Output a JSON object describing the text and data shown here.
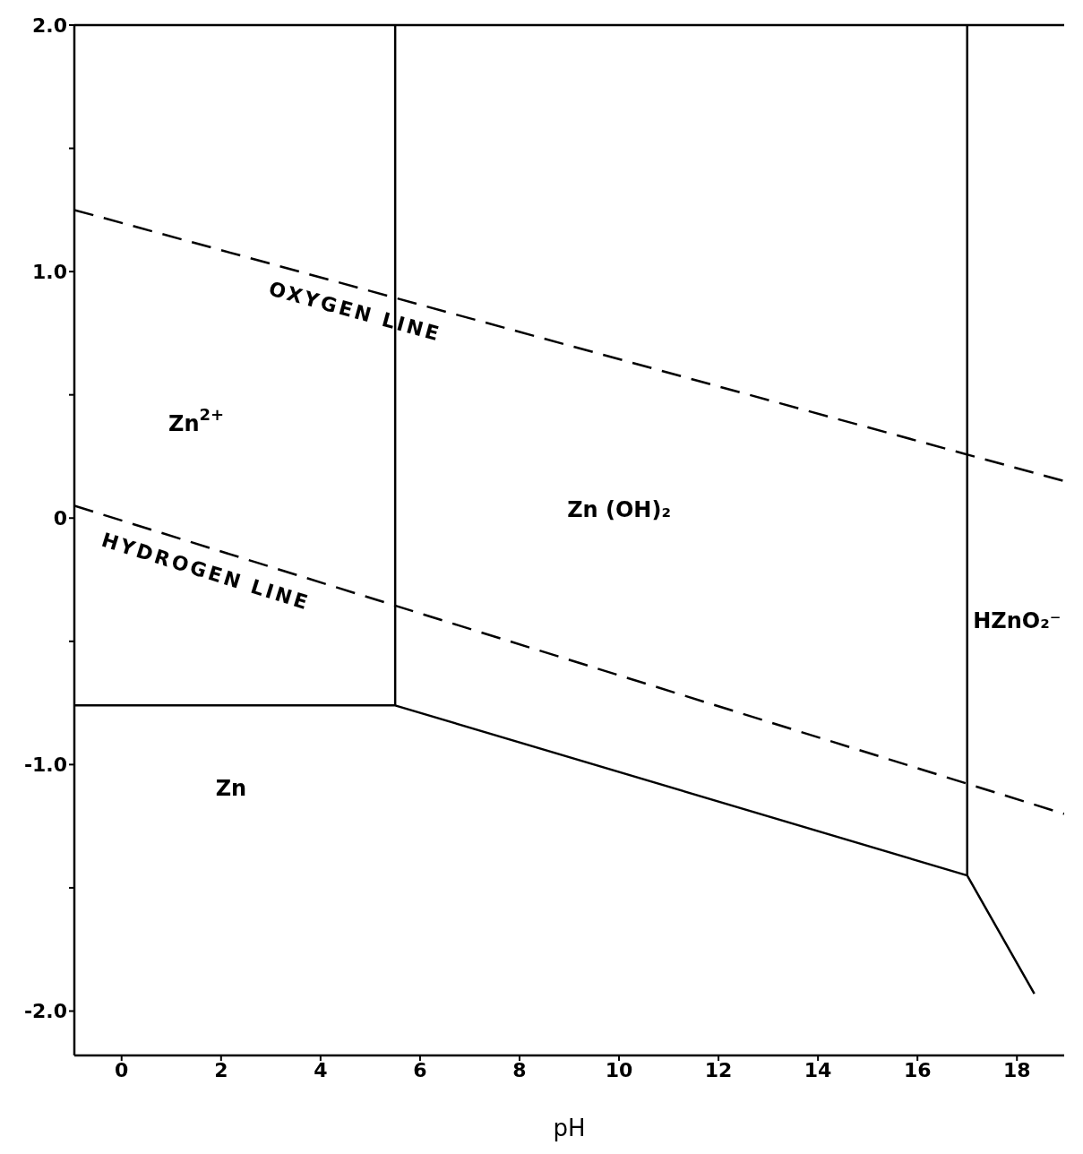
{
  "chart_data": {
    "type": "line",
    "xlabel": "pH",
    "xlim": [
      -0.95,
      18.95
    ],
    "xticks": [
      0,
      2,
      4,
      6,
      8,
      10,
      12,
      14,
      16,
      18
    ],
    "ylim": [
      -2.18,
      2.0
    ],
    "yticks": [
      {
        "value": 2.0,
        "label": "2.0"
      },
      {
        "value": 1.5,
        "label": null
      },
      {
        "value": 1.0,
        "label": "1.0"
      },
      {
        "value": 0.5,
        "label": null
      },
      0,
      {
        "value": -0.5,
        "label": null
      },
      {
        "value": -1.0,
        "label": "-1.0"
      },
      {
        "value": -1.5,
        "label": null
      },
      {
        "value": -2.0,
        "label": "-2.0"
      }
    ],
    "marker": "none",
    "series": [
      {
        "name": "OXYGEN LINE",
        "color": "#000000",
        "line_style": "dashed",
        "x": [
          -0.95,
          18.95
        ],
        "values": [
          1.25,
          0.15
        ]
      },
      {
        "name": "HYDROGEN LINE",
        "color": "#000000",
        "line_style": "dashed",
        "x": [
          -0.95,
          18.95
        ],
        "values": [
          0.05,
          -1.2
        ]
      },
      {
        "color": "#000000",
        "line_style": "solid",
        "x": [
          -0.95,
          5.5,
          17.0,
          18.35
        ],
        "values": [
          -0.76,
          -0.76,
          -1.45,
          -1.93
        ]
      },
      {
        "color": "#000000",
        "line_style": "solid",
        "x": [
          5.5,
          5.5
        ],
        "values": [
          -0.76,
          2.0
        ]
      },
      {
        "color": "#000000",
        "line_style": "solid",
        "x": [
          17.0,
          17.0
        ],
        "values": [
          -1.45,
          2.0
        ]
      }
    ],
    "annotations": [
      "Zn$^{2+}$",
      "Zn (OH)₂",
      "HZnO₂⁻",
      "Zn"
    ]
  }
}
